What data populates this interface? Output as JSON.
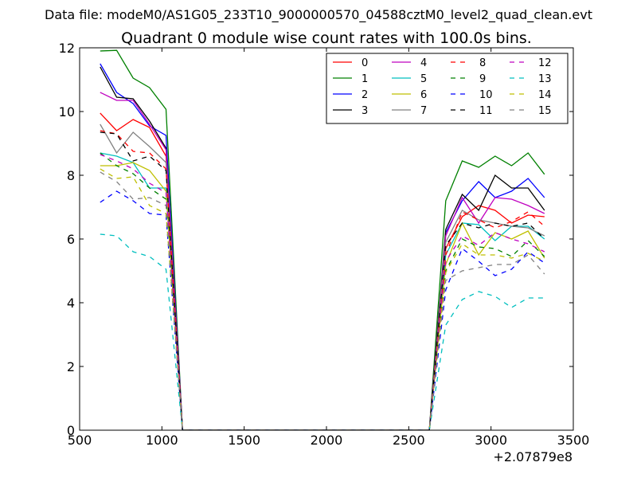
{
  "suptitle": "Data file: modeM0/AS1G05_233T10_9000000570_04588cztM0_level2_quad_clean.evt",
  "chart_data": {
    "type": "line",
    "title": "Quadrant 0 module wise count rates with 100.0s bins.",
    "xlabel": "",
    "ylabel": "",
    "x_offset_label": "+2.07879e8",
    "xlim": [
      500,
      3500
    ],
    "ylim": [
      0,
      12
    ],
    "x_ticks": [
      500,
      1000,
      1500,
      2000,
      2500,
      3000,
      3500
    ],
    "y_ticks": [
      0,
      2,
      4,
      6,
      8,
      10,
      12
    ],
    "grid": false,
    "legend_position": "top-right",
    "legend_columns": 4,
    "x": [
      625,
      725,
      825,
      925,
      1025,
      1125,
      2625,
      2725,
      2825,
      2925,
      3025,
      3125,
      3225,
      3325
    ],
    "series": [
      {
        "name": "0",
        "color": "#ff0000",
        "dash": "solid",
        "values": [
          9.95,
          9.4,
          9.75,
          9.5,
          8.6,
          0,
          0,
          5.7,
          6.7,
          7.05,
          6.9,
          6.5,
          6.75,
          6.7
        ]
      },
      {
        "name": "1",
        "color": "#008000",
        "dash": "solid",
        "values": [
          11.9,
          11.92,
          11.05,
          10.75,
          10.07,
          0,
          0,
          7.2,
          8.45,
          8.25,
          8.6,
          8.3,
          8.7,
          8.03
        ]
      },
      {
        "name": "2",
        "color": "#0000ff",
        "dash": "solid",
        "values": [
          11.5,
          10.6,
          10.25,
          9.55,
          9.25,
          0,
          0,
          6.2,
          7.2,
          7.8,
          7.3,
          7.5,
          7.9,
          7.3
        ]
      },
      {
        "name": "3",
        "color": "#000000",
        "dash": "solid",
        "values": [
          11.4,
          10.45,
          10.4,
          9.7,
          8.85,
          0,
          0,
          6.3,
          7.4,
          6.9,
          8.0,
          7.6,
          7.6,
          6.9
        ]
      },
      {
        "name": "4",
        "color": "#bf00bf",
        "dash": "solid",
        "values": [
          10.6,
          10.35,
          10.35,
          9.6,
          8.8,
          0,
          0,
          6.1,
          7.3,
          6.5,
          7.3,
          7.25,
          7.05,
          6.8
        ]
      },
      {
        "name": "5",
        "color": "#00bfbf",
        "dash": "solid",
        "values": [
          8.7,
          8.6,
          8.4,
          7.6,
          7.6,
          0,
          0,
          5.5,
          6.5,
          6.45,
          5.95,
          6.4,
          6.4,
          6.0
        ]
      },
      {
        "name": "6",
        "color": "#bfbf00",
        "dash": "solid",
        "values": [
          8.3,
          8.3,
          8.4,
          8.15,
          7.5,
          0,
          0,
          5.2,
          6.5,
          5.5,
          6.2,
          6.0,
          6.25,
          5.4
        ]
      },
      {
        "name": "7",
        "color": "#808080",
        "dash": "solid",
        "values": [
          9.6,
          8.7,
          9.35,
          8.9,
          8.4,
          0,
          0,
          5.9,
          6.9,
          6.6,
          6.5,
          6.4,
          6.35,
          6.1
        ]
      },
      {
        "name": "8",
        "color": "#ff0000",
        "dash": "dashed",
        "values": [
          9.4,
          9.3,
          8.75,
          8.7,
          8.2,
          0,
          0,
          5.5,
          6.85,
          6.6,
          6.35,
          6.55,
          6.85,
          6.4
        ]
      },
      {
        "name": "9",
        "color": "#008000",
        "dash": "dashed",
        "values": [
          8.7,
          8.3,
          8.05,
          7.6,
          7.25,
          0,
          0,
          5.0,
          6.0,
          5.75,
          5.7,
          5.45,
          5.95,
          5.45
        ]
      },
      {
        "name": "10",
        "color": "#0000ff",
        "dash": "dashed",
        "values": [
          7.15,
          7.5,
          7.2,
          6.8,
          6.75,
          0,
          0,
          4.4,
          5.7,
          5.3,
          4.85,
          5.05,
          5.6,
          5.25
        ]
      },
      {
        "name": "11",
        "color": "#000000",
        "dash": "dashed",
        "values": [
          9.35,
          9.3,
          8.45,
          8.6,
          8.15,
          0,
          0,
          5.8,
          6.5,
          6.35,
          6.5,
          6.4,
          6.5,
          6.0
        ]
      },
      {
        "name": "12",
        "color": "#bf00bf",
        "dash": "dashed",
        "values": [
          8.65,
          8.45,
          8.2,
          7.75,
          7.45,
          0,
          0,
          5.3,
          6.1,
          5.8,
          6.2,
          6.0,
          5.85,
          5.6
        ]
      },
      {
        "name": "13",
        "color": "#00bfbf",
        "dash": "dashed",
        "values": [
          6.15,
          6.1,
          5.6,
          5.45,
          5.05,
          0,
          0,
          3.3,
          4.1,
          4.35,
          4.2,
          3.85,
          4.15,
          4.15
        ]
      },
      {
        "name": "14",
        "color": "#bfbf00",
        "dash": "dashed",
        "values": [
          8.2,
          7.9,
          7.95,
          7.05,
          6.8,
          0,
          0,
          4.95,
          5.85,
          5.5,
          5.5,
          5.4,
          5.55,
          5.3
        ]
      },
      {
        "name": "15",
        "color": "#808080",
        "dash": "dashed",
        "values": [
          8.1,
          7.8,
          7.25,
          7.3,
          7.05,
          0,
          0,
          4.7,
          5.0,
          5.1,
          5.2,
          5.2,
          5.5,
          4.9
        ]
      }
    ]
  }
}
